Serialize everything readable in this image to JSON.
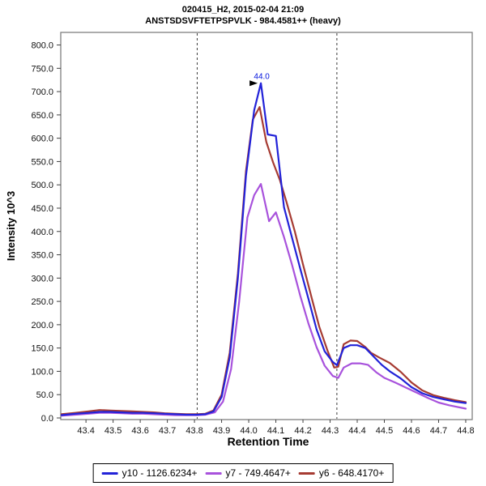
{
  "header": {
    "title": "020415_H2, 2015-02-04 21:09",
    "subtitle": "ANSTSDSVFTETPSPVLK - 984.4581++ (heavy)"
  },
  "chart_data": {
    "type": "line",
    "title": "020415_H2, 2015-02-04 21:09",
    "subtitle": "ANSTSDSVFTETPSPVLK - 984.4581++ (heavy)",
    "xlabel": "Retention Time",
    "ylabel": "Intensity 10^3",
    "xlim": [
      43.31,
      44.82
    ],
    "ylim": [
      0,
      800
    ],
    "grid": false,
    "legend_position": "bottom",
    "x_ticks": [
      43.4,
      43.5,
      43.6,
      43.7,
      43.8,
      43.9,
      44.0,
      44.1,
      44.2,
      44.3,
      44.4,
      44.5,
      44.6,
      44.7,
      44.8
    ],
    "x_tick_labels": [
      "43.4",
      "43.5",
      "43.6",
      "43.7",
      "43.8",
      "43.9",
      "44.0",
      "44.1",
      "44.2",
      "44.3",
      "44.4",
      "44.5",
      "44.6",
      "44.7",
      "44.8"
    ],
    "y_ticks": [
      0,
      50,
      100,
      150,
      200,
      250,
      300,
      350,
      400,
      450,
      500,
      550,
      600,
      650,
      700,
      750,
      800
    ],
    "y_tick_labels": [
      "0.0",
      "50.0",
      "100.0",
      "150.0",
      "200.0",
      "250.0",
      "300.0",
      "350.0",
      "400.0",
      "450.0",
      "500.0",
      "550.0",
      "600.0",
      "650.0",
      "700.0",
      "750.0",
      "800.0"
    ],
    "peak_boundaries": [
      43.81,
      44.325
    ],
    "annotation": {
      "text": "44.0",
      "x": 44.045,
      "y": 718,
      "color": "#0011dd"
    },
    "series": [
      {
        "name": "y10 - 1126.6234+",
        "color": "#2222d8",
        "points": [
          [
            43.31,
            6
          ],
          [
            43.36,
            9
          ],
          [
            43.41,
            11
          ],
          [
            43.45,
            13
          ],
          [
            43.49,
            13
          ],
          [
            43.53,
            12
          ],
          [
            43.57,
            11
          ],
          [
            43.61,
            11
          ],
          [
            43.65,
            10
          ],
          [
            43.69,
            9
          ],
          [
            43.73,
            8
          ],
          [
            43.77,
            7
          ],
          [
            43.81,
            7
          ],
          [
            43.84,
            8
          ],
          [
            43.87,
            14
          ],
          [
            43.9,
            45
          ],
          [
            43.93,
            130
          ],
          [
            43.96,
            300
          ],
          [
            43.99,
            520
          ],
          [
            44.02,
            660
          ],
          [
            44.045,
            718
          ],
          [
            44.07,
            608
          ],
          [
            44.1,
            605
          ],
          [
            44.13,
            452
          ],
          [
            44.16,
            386
          ],
          [
            44.19,
            320
          ],
          [
            44.22,
            256
          ],
          [
            44.25,
            190
          ],
          [
            44.28,
            143
          ],
          [
            44.31,
            120
          ],
          [
            44.325,
            113
          ],
          [
            44.35,
            150
          ],
          [
            44.375,
            156
          ],
          [
            44.4,
            156
          ],
          [
            44.43,
            150
          ],
          [
            44.46,
            132
          ],
          [
            44.49,
            114
          ],
          [
            44.52,
            100
          ],
          [
            44.56,
            85
          ],
          [
            44.6,
            66
          ],
          [
            44.64,
            53
          ],
          [
            44.68,
            45
          ],
          [
            44.72,
            40
          ],
          [
            44.76,
            35
          ],
          [
            44.8,
            32
          ]
        ]
      },
      {
        "name": "y7 - 749.4647+",
        "color": "#a852dc",
        "points": [
          [
            43.31,
            5
          ],
          [
            43.36,
            7
          ],
          [
            43.41,
            9
          ],
          [
            43.45,
            11
          ],
          [
            43.49,
            11
          ],
          [
            43.53,
            10
          ],
          [
            43.57,
            9
          ],
          [
            43.61,
            9
          ],
          [
            43.65,
            8
          ],
          [
            43.69,
            7
          ],
          [
            43.73,
            6
          ],
          [
            43.77,
            6
          ],
          [
            43.81,
            6
          ],
          [
            43.84,
            7
          ],
          [
            43.875,
            12
          ],
          [
            43.905,
            35
          ],
          [
            43.935,
            105
          ],
          [
            43.965,
            250
          ],
          [
            43.995,
            430
          ],
          [
            44.02,
            478
          ],
          [
            44.045,
            502
          ],
          [
            44.075,
            422
          ],
          [
            44.1,
            441
          ],
          [
            44.13,
            388
          ],
          [
            44.16,
            328
          ],
          [
            44.19,
            262
          ],
          [
            44.22,
            203
          ],
          [
            44.25,
            152
          ],
          [
            44.28,
            112
          ],
          [
            44.31,
            90
          ],
          [
            44.33,
            86
          ],
          [
            44.35,
            108
          ],
          [
            44.38,
            117
          ],
          [
            44.41,
            117
          ],
          [
            44.44,
            114
          ],
          [
            44.47,
            98
          ],
          [
            44.5,
            86
          ],
          [
            44.54,
            76
          ],
          [
            44.58,
            65
          ],
          [
            44.62,
            54
          ],
          [
            44.66,
            43
          ],
          [
            44.7,
            33
          ],
          [
            44.74,
            27
          ],
          [
            44.8,
            20
          ]
        ]
      },
      {
        "name": "y6 - 648.4170+",
        "color": "#a63b32",
        "points": [
          [
            43.31,
            8
          ],
          [
            43.36,
            11
          ],
          [
            43.41,
            14
          ],
          [
            43.45,
            17
          ],
          [
            43.49,
            16
          ],
          [
            43.53,
            15
          ],
          [
            43.57,
            14
          ],
          [
            43.61,
            13
          ],
          [
            43.65,
            12
          ],
          [
            43.69,
            10
          ],
          [
            43.73,
            9
          ],
          [
            43.77,
            8
          ],
          [
            43.81,
            8
          ],
          [
            43.84,
            9
          ],
          [
            43.87,
            16
          ],
          [
            43.9,
            50
          ],
          [
            43.93,
            140
          ],
          [
            43.96,
            310
          ],
          [
            43.99,
            530
          ],
          [
            44.015,
            640
          ],
          [
            44.04,
            667
          ],
          [
            44.065,
            592
          ],
          [
            44.09,
            548
          ],
          [
            44.115,
            510
          ],
          [
            44.14,
            462
          ],
          [
            44.17,
            400
          ],
          [
            44.2,
            330
          ],
          [
            44.23,
            262
          ],
          [
            44.26,
            196
          ],
          [
            44.29,
            145
          ],
          [
            44.315,
            108
          ],
          [
            44.33,
            110
          ],
          [
            44.35,
            158
          ],
          [
            44.375,
            166
          ],
          [
            44.4,
            165
          ],
          [
            44.43,
            152
          ],
          [
            44.45,
            140
          ],
          [
            44.48,
            130
          ],
          [
            44.52,
            118
          ],
          [
            44.56,
            99
          ],
          [
            44.6,
            76
          ],
          [
            44.64,
            59
          ],
          [
            44.68,
            49
          ],
          [
            44.72,
            43
          ],
          [
            44.76,
            38
          ],
          [
            44.8,
            34
          ]
        ]
      }
    ]
  }
}
